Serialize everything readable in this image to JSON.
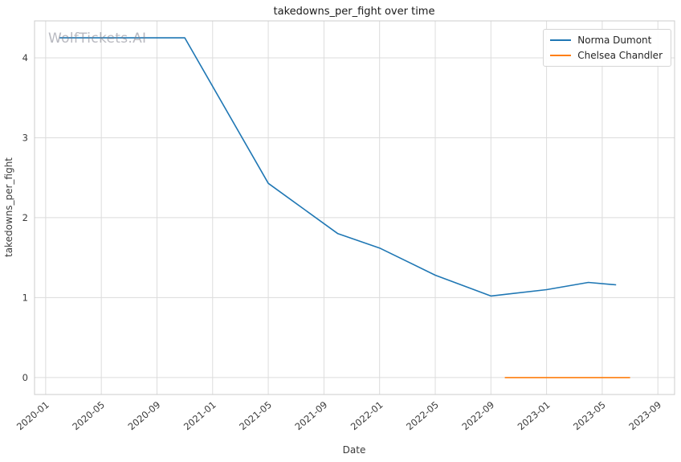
{
  "watermark": "WolfTickets.AI",
  "chart_data": {
    "type": "line",
    "title": "takedowns_per_fight over time",
    "xlabel": "Date",
    "ylabel": "takedowns_per_fight",
    "x_tick_labels": [
      "2020-01",
      "2020-05",
      "2020-09",
      "2021-01",
      "2021-05",
      "2021-09",
      "2022-01",
      "2022-05",
      "2022-09",
      "2023-01",
      "2023-05",
      "2023-09"
    ],
    "y_ticks": [
      0,
      1,
      2,
      3,
      4
    ],
    "x_range": [
      -0.8,
      45.2
    ],
    "y_range": [
      -0.2125,
      4.4625
    ],
    "grid": true,
    "legend_position": "upper right",
    "series": [
      {
        "name": "Norma Dumont",
        "color": "#1f77b4",
        "points": [
          [
            "2020-02",
            4.25
          ],
          [
            "2020-11",
            4.25
          ],
          [
            "2021-05",
            2.43
          ],
          [
            "2021-10",
            1.8
          ],
          [
            "2022-01",
            1.62
          ],
          [
            "2022-05",
            1.28
          ],
          [
            "2022-09",
            1.02
          ],
          [
            "2023-01",
            1.1
          ],
          [
            "2023-04",
            1.19
          ],
          [
            "2023-06",
            1.16
          ]
        ]
      },
      {
        "name": "Chelsea Chandler",
        "color": "#ff7f0e",
        "points": [
          [
            "2022-10",
            0.0
          ],
          [
            "2023-07",
            0.0
          ]
        ]
      }
    ]
  }
}
